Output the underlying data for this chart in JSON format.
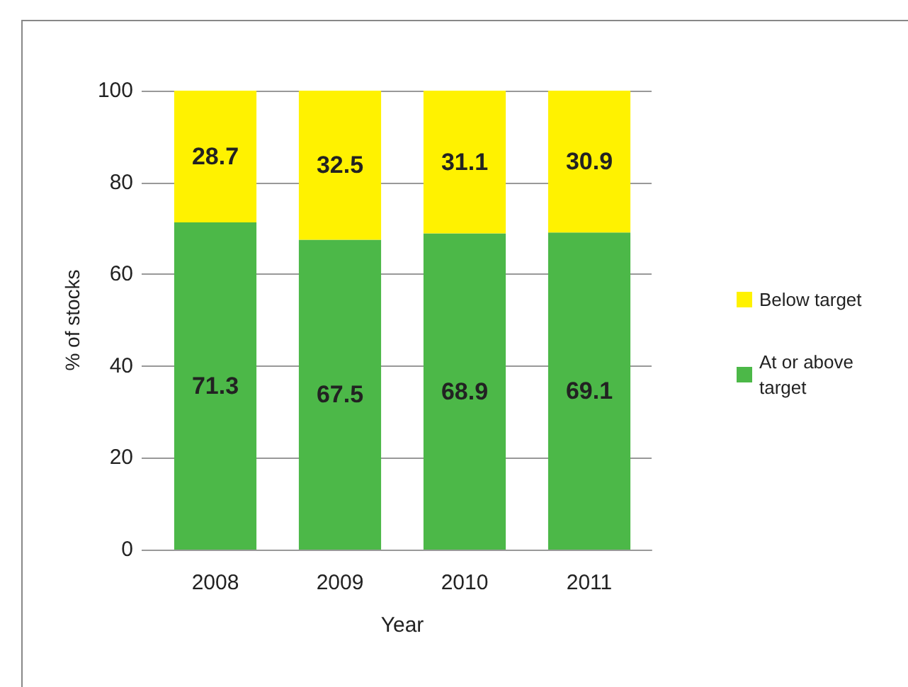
{
  "chart_data": {
    "type": "bar",
    "stacked": true,
    "xlabel": "Year",
    "ylabel": "% of stocks",
    "categories": [
      "2008",
      "2009",
      "2010",
      "2011"
    ],
    "series": [
      {
        "name": "At or above target",
        "color": "#4cb848",
        "values": [
          71.3,
          67.5,
          68.9,
          69.1
        ]
      },
      {
        "name": "Below target",
        "color": "#fff200",
        "values": [
          28.7,
          32.5,
          31.1,
          30.9
        ]
      }
    ],
    "ylim": [
      0,
      100
    ],
    "yticks": [
      0,
      20,
      40,
      60,
      80,
      100
    ],
    "grid": "y",
    "legend": "right",
    "data_labels": true
  }
}
